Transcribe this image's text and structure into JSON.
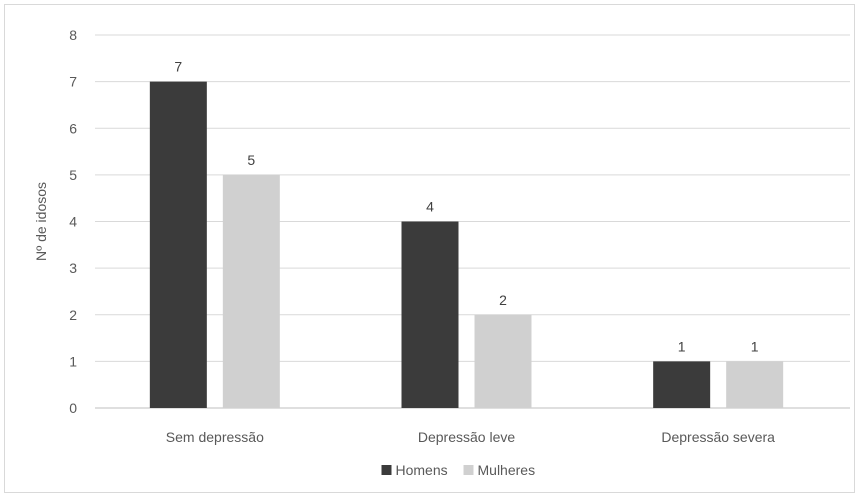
{
  "chart_data": {
    "type": "bar",
    "title": "",
    "xlabel": "",
    "ylabel": "Nº de idosos",
    "ylim": [
      0,
      8
    ],
    "yticks": [
      0,
      1,
      2,
      3,
      4,
      5,
      6,
      7,
      8
    ],
    "grid": true,
    "legend_position": "bottom",
    "categories": [
      "Sem depressão",
      "Depressão leve",
      "Depressão severa"
    ],
    "series": [
      {
        "name": "Homens",
        "values": [
          7,
          4,
          1
        ],
        "color": "#3b3b3b"
      },
      {
        "name": "Mulheres",
        "values": [
          5,
          2,
          1
        ],
        "color": "#d0d0d0"
      }
    ]
  }
}
